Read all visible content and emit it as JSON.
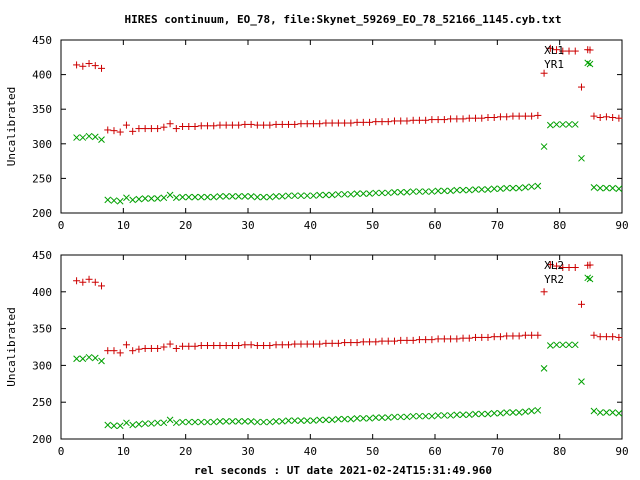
{
  "figure": {
    "title": "HIRES continuum, EO_78, file:Skynet_59269_EO_78_52166_1145.cyb.txt",
    "xlabel": "rel seconds : UT date 2021-02-24T15:31:49.960",
    "colors": {
      "series1": "#cc0000",
      "series2": "#00a000",
      "axis": "#000000"
    }
  },
  "chart_data": [
    {
      "type": "scatter",
      "ylabel": "Uncalibrated",
      "xlim": [
        0,
        90
      ],
      "ylim": [
        200,
        450
      ],
      "xticks": [
        0,
        10,
        20,
        30,
        40,
        50,
        60,
        70,
        80,
        90
      ],
      "yticks": [
        200,
        250,
        300,
        350,
        400,
        450
      ],
      "grid": false,
      "legend_position": "top-right",
      "series": [
        {
          "name": "XL1",
          "marker": "plus",
          "x": [
            2.5,
            3.5,
            4.5,
            5.5,
            6.5,
            7.5,
            8.5,
            9.5,
            10.5,
            11.5,
            12.5,
            13.5,
            14.5,
            15.5,
            16.5,
            17.5,
            18.5,
            19.5,
            20.5,
            21.5,
            22.5,
            23.5,
            24.5,
            25.5,
            26.5,
            27.5,
            28.5,
            29.5,
            30.5,
            31.5,
            32.5,
            33.5,
            34.5,
            35.5,
            36.5,
            37.5,
            38.5,
            39.5,
            40.5,
            41.5,
            42.5,
            43.5,
            44.5,
            45.5,
            46.5,
            47.5,
            48.5,
            49.5,
            50.5,
            51.5,
            52.5,
            53.5,
            54.5,
            55.5,
            56.5,
            57.5,
            58.5,
            59.5,
            60.5,
            61.5,
            62.5,
            63.5,
            64.5,
            65.5,
            66.5,
            67.5,
            68.5,
            69.5,
            70.5,
            71.5,
            72.5,
            73.5,
            74.5,
            75.5,
            76.5,
            77.5,
            78.5,
            79.5,
            80.5,
            81.5,
            82.5,
            83.5,
            84.5,
            85.5,
            86.5,
            87.5,
            88.5,
            89.5
          ],
          "y": [
            414,
            412,
            416,
            413,
            409,
            320,
            319,
            317,
            327,
            318,
            322,
            322,
            322,
            322,
            324,
            329,
            322,
            325,
            325,
            325,
            326,
            326,
            326,
            327,
            327,
            327,
            327,
            328,
            328,
            327,
            327,
            327,
            328,
            328,
            328,
            328,
            329,
            329,
            329,
            329,
            330,
            330,
            330,
            330,
            330,
            331,
            331,
            331,
            332,
            332,
            332,
            333,
            333,
            333,
            334,
            334,
            334,
            335,
            335,
            335,
            336,
            336,
            336,
            337,
            337,
            337,
            338,
            338,
            339,
            339,
            340,
            340,
            340,
            340,
            341,
            402,
            438,
            436,
            434,
            434,
            434,
            382,
            436,
            340,
            338,
            339,
            338,
            337
          ]
        },
        {
          "name": "YR1",
          "marker": "x",
          "x": [
            2.5,
            3.5,
            4.5,
            5.5,
            6.5,
            7.5,
            8.5,
            9.5,
            10.5,
            11.5,
            12.5,
            13.5,
            14.5,
            15.5,
            16.5,
            17.5,
            18.5,
            19.5,
            20.5,
            21.5,
            22.5,
            23.5,
            24.5,
            25.5,
            26.5,
            27.5,
            28.5,
            29.5,
            30.5,
            31.5,
            32.5,
            33.5,
            34.5,
            35.5,
            36.5,
            37.5,
            38.5,
            39.5,
            40.5,
            41.5,
            42.5,
            43.5,
            44.5,
            45.5,
            46.5,
            47.5,
            48.5,
            49.5,
            50.5,
            51.5,
            52.5,
            53.5,
            54.5,
            55.5,
            56.5,
            57.5,
            58.5,
            59.5,
            60.5,
            61.5,
            62.5,
            63.5,
            64.5,
            65.5,
            66.5,
            67.5,
            68.5,
            69.5,
            70.5,
            71.5,
            72.5,
            73.5,
            74.5,
            75.5,
            76.5,
            77.5,
            78.5,
            79.5,
            80.5,
            81.5,
            82.5,
            83.5,
            84.5,
            85.5,
            86.5,
            87.5,
            88.5,
            89.5
          ],
          "y": [
            309,
            309,
            311,
            310,
            306,
            219,
            218,
            217,
            222,
            219,
            220,
            221,
            221,
            221,
            222,
            226,
            222,
            223,
            223,
            223,
            223,
            223,
            223,
            224,
            224,
            224,
            224,
            224,
            224,
            223,
            223,
            223,
            224,
            224,
            225,
            225,
            225,
            225,
            225,
            226,
            226,
            226,
            227,
            227,
            227,
            228,
            228,
            228,
            229,
            229,
            229,
            230,
            230,
            230,
            231,
            231,
            231,
            231,
            232,
            232,
            232,
            233,
            233,
            233,
            234,
            234,
            234,
            235,
            235,
            236,
            236,
            236,
            237,
            238,
            239,
            296,
            327,
            328,
            328,
            328,
            328,
            279,
            417,
            237,
            236,
            236,
            236,
            235
          ]
        }
      ]
    },
    {
      "type": "scatter",
      "ylabel": "Uncalibrated",
      "xlim": [
        0,
        90
      ],
      "ylim": [
        200,
        450
      ],
      "xticks": [
        0,
        10,
        20,
        30,
        40,
        50,
        60,
        70,
        80,
        90
      ],
      "yticks": [
        200,
        250,
        300,
        350,
        400,
        450
      ],
      "grid": false,
      "legend_position": "top-right",
      "series": [
        {
          "name": "XL2",
          "marker": "plus",
          "x": [
            2.5,
            3.5,
            4.5,
            5.5,
            6.5,
            7.5,
            8.5,
            9.5,
            10.5,
            11.5,
            12.5,
            13.5,
            14.5,
            15.5,
            16.5,
            17.5,
            18.5,
            19.5,
            20.5,
            21.5,
            22.5,
            23.5,
            24.5,
            25.5,
            26.5,
            27.5,
            28.5,
            29.5,
            30.5,
            31.5,
            32.5,
            33.5,
            34.5,
            35.5,
            36.5,
            37.5,
            38.5,
            39.5,
            40.5,
            41.5,
            42.5,
            43.5,
            44.5,
            45.5,
            46.5,
            47.5,
            48.5,
            49.5,
            50.5,
            51.5,
            52.5,
            53.5,
            54.5,
            55.5,
            56.5,
            57.5,
            58.5,
            59.5,
            60.5,
            61.5,
            62.5,
            63.5,
            64.5,
            65.5,
            66.5,
            67.5,
            68.5,
            69.5,
            70.5,
            71.5,
            72.5,
            73.5,
            74.5,
            75.5,
            76.5,
            77.5,
            78.5,
            79.5,
            80.5,
            81.5,
            82.5,
            83.5,
            84.5,
            85.5,
            86.5,
            87.5,
            88.5,
            89.5
          ],
          "y": [
            415,
            413,
            417,
            413,
            408,
            320,
            320,
            317,
            328,
            320,
            322,
            323,
            323,
            323,
            325,
            329,
            323,
            326,
            326,
            326,
            327,
            327,
            327,
            327,
            327,
            327,
            327,
            328,
            328,
            327,
            327,
            327,
            328,
            328,
            328,
            329,
            329,
            329,
            329,
            329,
            330,
            330,
            330,
            331,
            331,
            331,
            332,
            332,
            332,
            333,
            333,
            333,
            334,
            334,
            334,
            335,
            335,
            335,
            336,
            336,
            336,
            336,
            337,
            337,
            338,
            338,
            338,
            339,
            339,
            340,
            340,
            340,
            341,
            341,
            341,
            400,
            437,
            435,
            433,
            433,
            433,
            383,
            436,
            341,
            339,
            339,
            339,
            338
          ]
        },
        {
          "name": "YR2",
          "marker": "x",
          "x": [
            2.5,
            3.5,
            4.5,
            5.5,
            6.5,
            7.5,
            8.5,
            9.5,
            10.5,
            11.5,
            12.5,
            13.5,
            14.5,
            15.5,
            16.5,
            17.5,
            18.5,
            19.5,
            20.5,
            21.5,
            22.5,
            23.5,
            24.5,
            25.5,
            26.5,
            27.5,
            28.5,
            29.5,
            30.5,
            31.5,
            32.5,
            33.5,
            34.5,
            35.5,
            36.5,
            37.5,
            38.5,
            39.5,
            40.5,
            41.5,
            42.5,
            43.5,
            44.5,
            45.5,
            46.5,
            47.5,
            48.5,
            49.5,
            50.5,
            51.5,
            52.5,
            53.5,
            54.5,
            55.5,
            56.5,
            57.5,
            58.5,
            59.5,
            60.5,
            61.5,
            62.5,
            63.5,
            64.5,
            65.5,
            66.5,
            67.5,
            68.5,
            69.5,
            70.5,
            71.5,
            72.5,
            73.5,
            74.5,
            75.5,
            76.5,
            77.5,
            78.5,
            79.5,
            80.5,
            81.5,
            82.5,
            83.5,
            84.5,
            85.5,
            86.5,
            87.5,
            88.5,
            89.5
          ],
          "y": [
            309,
            309,
            311,
            310,
            306,
            219,
            218,
            218,
            222,
            219,
            220,
            221,
            221,
            222,
            222,
            226,
            222,
            223,
            223,
            223,
            223,
            223,
            223,
            224,
            224,
            224,
            224,
            224,
            224,
            223,
            223,
            223,
            224,
            224,
            225,
            225,
            225,
            225,
            225,
            226,
            226,
            226,
            227,
            227,
            227,
            228,
            228,
            228,
            229,
            229,
            229,
            230,
            230,
            230,
            231,
            231,
            231,
            231,
            232,
            232,
            232,
            233,
            233,
            233,
            234,
            234,
            234,
            235,
            235,
            236,
            236,
            236,
            237,
            238,
            239,
            296,
            327,
            328,
            328,
            328,
            328,
            278,
            419,
            238,
            236,
            236,
            236,
            235
          ]
        }
      ]
    }
  ]
}
